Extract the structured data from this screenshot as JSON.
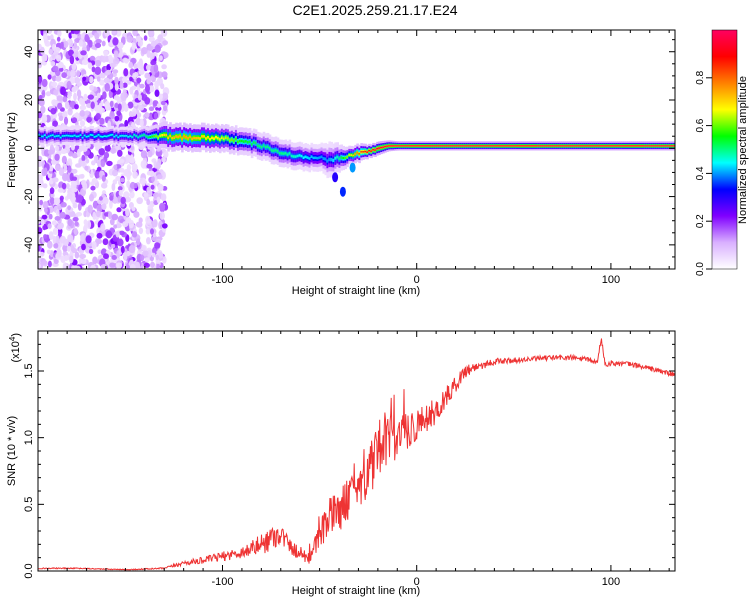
{
  "figure": {
    "title": "C2E1.2025.259.21.17.E24"
  },
  "chart_data": [
    {
      "type": "heatmap",
      "title": "C2E1.2025.259.21.17.E24",
      "xlabel": "Height of straight line (km)",
      "ylabel": "Frequency (Hz)",
      "xlim": [
        -195,
        133
      ],
      "ylim": [
        -50,
        49
      ],
      "x_ticks": [
        -100,
        0,
        100
      ],
      "y_ticks": [
        -40,
        -20,
        0,
        20,
        40
      ],
      "colorbar": {
        "label": "Normalized spectral amplitude",
        "range": [
          0,
          1
        ],
        "ticks": [
          0.0,
          0.2,
          0.4,
          0.6,
          0.8
        ],
        "colors": [
          "#ffffff",
          "#d9b0ff",
          "#8000ff",
          "#0000ff",
          "#00ffff",
          "#00ff00",
          "#ffff00",
          "#ff8000",
          "#ff0000",
          "#ff0060"
        ]
      },
      "noise_region": {
        "x_range": [
          -195,
          -129
        ],
        "y_range": [
          -50,
          49
        ]
      },
      "ridge_x": [
        -195,
        -180,
        -165,
        -150,
        -140,
        -130,
        -120,
        -110,
        -100,
        -90,
        -80,
        -70,
        -60,
        -50,
        -45,
        -40,
        -35,
        -30,
        -25,
        -20,
        -15,
        -10,
        -5,
        0,
        10,
        20,
        40,
        60,
        80,
        100,
        120,
        133
      ],
      "ridge_y": [
        5,
        5,
        5,
        5,
        5,
        5,
        4.5,
        4.5,
        4,
        3,
        1,
        -2,
        -3.5,
        -4,
        -5,
        -4,
        -3,
        -2,
        -1,
        0,
        1,
        1,
        1,
        1,
        1,
        1,
        1,
        1,
        1,
        1,
        1,
        1
      ],
      "ridge_amplitude": [
        0.45,
        0.45,
        0.45,
        0.45,
        0.5,
        0.7,
        0.75,
        0.7,
        0.65,
        0.55,
        0.5,
        0.5,
        0.45,
        0.4,
        0.4,
        0.5,
        0.65,
        0.8,
        0.9,
        0.95,
        0.95,
        0.95,
        0.95,
        0.95,
        0.95,
        0.95,
        0.95,
        0.95,
        0.95,
        0.95,
        0.95,
        0.95
      ],
      "ridge_spread_hz": [
        2,
        2,
        2,
        2,
        2,
        3,
        3,
        3,
        3,
        3,
        3,
        3,
        3,
        3,
        4,
        3,
        2,
        2,
        1.5,
        1.5,
        1.2,
        1,
        1,
        1,
        1,
        1,
        1,
        1,
        1,
        1,
        1,
        1
      ]
    },
    {
      "type": "line",
      "xlabel": "Height of straight line (km)",
      "ylabel": "SNR (10 * v/v)",
      "y_scale_label": "(x10",
      "y_scale_exp": "4",
      "y_scale_close": ")",
      "xlim": [
        -195,
        133
      ],
      "ylim": [
        0,
        1.8
      ],
      "x_ticks": [
        -100,
        0,
        100
      ],
      "y_ticks": [
        0.0,
        0.5,
        1.0,
        1.5
      ],
      "color": "#ee3333",
      "series": [
        {
          "name": "SNR",
          "x": [
            -195,
            -175,
            -150,
            -130,
            -125,
            -120,
            -110,
            -100,
            -90,
            -85,
            -80,
            -75,
            -70,
            -65,
            -60,
            -55,
            -50,
            -45,
            -40,
            -35,
            -30,
            -25,
            -20,
            -15,
            -10,
            -5,
            0,
            5,
            10,
            15,
            20,
            25,
            30,
            35,
            40,
            50,
            60,
            70,
            80,
            90,
            93,
            95,
            97,
            100,
            110,
            120,
            133
          ],
          "y": [
            0.02,
            0.02,
            0.01,
            0.02,
            0.04,
            0.06,
            0.08,
            0.11,
            0.14,
            0.17,
            0.2,
            0.25,
            0.28,
            0.18,
            0.13,
            0.1,
            0.25,
            0.4,
            0.45,
            0.55,
            0.65,
            0.75,
            0.85,
            0.95,
            1.0,
            1.05,
            1.1,
            1.15,
            1.2,
            1.3,
            1.4,
            1.5,
            1.53,
            1.55,
            1.57,
            1.58,
            1.59,
            1.6,
            1.6,
            1.58,
            1.56,
            1.75,
            1.55,
            1.56,
            1.55,
            1.52,
            1.47
          ],
          "jitter": [
            0.004,
            0.004,
            0.003,
            0.006,
            0.012,
            0.018,
            0.025,
            0.035,
            0.045,
            0.06,
            0.08,
            0.1,
            0.08,
            0.06,
            0.05,
            0.05,
            0.1,
            0.15,
            0.16,
            0.16,
            0.18,
            0.2,
            0.22,
            0.22,
            0.18,
            0.15,
            0.13,
            0.11,
            0.1,
            0.08,
            0.06,
            0.05,
            0.04,
            0.03,
            0.025,
            0.02,
            0.02,
            0.02,
            0.02,
            0.02,
            0.02,
            0.02,
            0.02,
            0.02,
            0.02,
            0.02,
            0.02
          ]
        }
      ]
    }
  ]
}
